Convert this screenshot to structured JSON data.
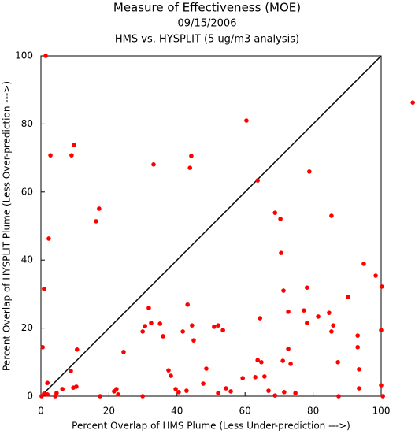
{
  "chart_data": {
    "type": "scatter",
    "title": "Measure of Effectiveness (MOE)",
    "subtitle": [
      "09/15/2006",
      "HMS vs. HYSPLIT  (5 ug/m3 analysis)"
    ],
    "x_label": "Percent Overlap of HMS Plume (Less Under-prediction --->)",
    "y_label": "Percent Overlap of HYSPLIT Plume (Less Over-prediction --->)",
    "xlim": [
      0,
      100
    ],
    "ylim": [
      0,
      100
    ],
    "xticks": [
      0,
      20,
      40,
      60,
      80,
      100
    ],
    "yticks": [
      0,
      20,
      40,
      60,
      80,
      100
    ],
    "color": "#ff0000",
    "x": [
      1.4,
      2.8,
      9.0,
      9.7,
      2.3,
      0.9,
      0.5,
      1.9,
      0.2,
      0.9,
      1.9,
      4.2,
      4.6,
      6.3,
      8.8,
      9.5,
      10.4,
      10.6,
      17.1,
      16.2,
      17.4,
      24.3,
      21.5,
      22.2,
      22.7,
      29.9,
      30.6,
      31.7,
      32.4,
      29.9,
      33.1,
      35.0,
      35.9,
      37.5,
      38.2,
      39.6,
      40.5,
      41.7,
      43.1,
      43.8,
      44.2,
      42.8,
      44.4,
      44.9,
      47.7,
      48.6,
      50.9,
      52.1,
      53.5,
      52.1,
      54.4,
      55.8,
      59.3,
      60.4,
      63.0,
      63.7,
      63.7,
      64.4,
      64.8,
      65.7,
      66.9,
      68.8,
      68.8,
      70.4,
      70.6,
      71.1,
      71.3,
      71.5,
      72.7,
      72.7,
      73.4,
      74.8,
      77.3,
      78.2,
      78.2,
      78.9,
      81.5,
      84.7,
      85.4,
      85.9,
      85.4,
      87.3,
      87.5,
      90.3,
      93.1,
      93.1,
      93.5,
      93.5,
      94.9,
      98.4,
      100.2,
      100.0,
      100.0,
      100.5,
      109.3
    ],
    "values": [
      100,
      70.8,
      70.8,
      73.8,
      46.3,
      31.5,
      14.4,
      3.9,
      0,
      0.7,
      0.5,
      0,
      0.9,
      2.1,
      7.4,
      2.5,
      2.8,
      13.7,
      55.1,
      51.4,
      0,
      13.0,
      1.4,
      2.1,
      0.5,
      19.0,
      20.6,
      25.9,
      21.5,
      0,
      68.1,
      21.3,
      17.6,
      7.6,
      6.0,
      2.1,
      1.2,
      19.0,
      26.9,
      67.1,
      70.6,
      1.6,
      20.8,
      16.4,
      3.7,
      8.1,
      20.4,
      20.8,
      19.4,
      0.9,
      2.3,
      1.4,
      5.3,
      81.0,
      5.6,
      63.4,
      10.6,
      22.9,
      10.0,
      5.8,
      1.6,
      53.9,
      0.2,
      52.1,
      42.1,
      10.4,
      31.0,
      1.2,
      24.8,
      13.9,
      9.5,
      0.9,
      25.2,
      21.5,
      31.9,
      66.0,
      23.4,
      24.5,
      53.0,
      20.8,
      19.0,
      10.0,
      0,
      29.2,
      17.8,
      14.4,
      7.9,
      2.3,
      38.9,
      35.4,
      32.2,
      19.4,
      3.2,
      0,
      86.3
    ]
  }
}
